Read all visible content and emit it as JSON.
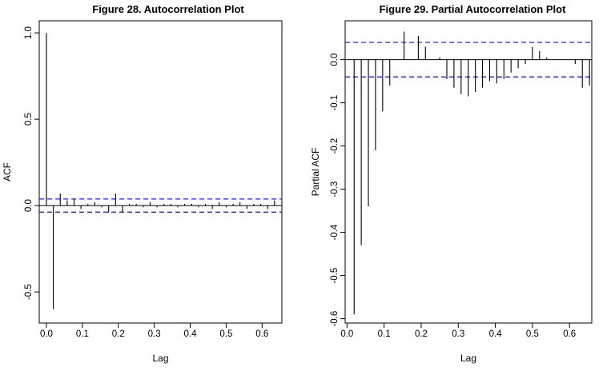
{
  "chart_data": [
    {
      "type": "bar",
      "title": "Figure 28. Autocorrelation Plot",
      "xlabel": "Lag",
      "ylabel": "ACF",
      "xlim": [
        -0.02,
        0.655
      ],
      "ylim": [
        -0.68,
        1.07
      ],
      "xticks": [
        0.0,
        0.1,
        0.2,
        0.3,
        0.4,
        0.5,
        0.6
      ],
      "xtick_labels": [
        "0.0",
        "0.1",
        "0.2",
        "0.3",
        "0.4",
        "0.5",
        "0.6"
      ],
      "yticks": [
        -0.5,
        0.0,
        0.5,
        1.0
      ],
      "ytick_labels": [
        "-0.5",
        "0.0",
        "0.5",
        "1.0"
      ],
      "zero_line": true,
      "confidence_bound": 0.038,
      "confidence_color": "#2020ff",
      "bar_color": "#000000",
      "lag_step": 0.01923,
      "values": [
        1.0,
        -0.6,
        0.07,
        0.03,
        0.04,
        -0.02,
        0.01,
        0.02,
        -0.01,
        -0.04,
        0.07,
        -0.04,
        0.01,
        0.01,
        -0.01,
        0.02,
        -0.01,
        0.01,
        0.01,
        -0.01,
        0.01,
        0.01,
        -0.01,
        0.01,
        -0.02,
        0.02,
        -0.01,
        0.01,
        0.02,
        -0.02,
        0.01,
        0.01,
        -0.02,
        0.03
      ]
    },
    {
      "type": "bar",
      "title": "Figure 29. Partial Autocorrelation Plot",
      "xlabel": "Lag",
      "ylabel": "Partial ACF",
      "xlim": [
        -0.005,
        0.66
      ],
      "ylim": [
        -0.61,
        0.09
      ],
      "xticks": [
        0.0,
        0.1,
        0.2,
        0.3,
        0.4,
        0.5,
        0.6
      ],
      "xtick_labels": [
        "0.0",
        "0.1",
        "0.2",
        "0.3",
        "0.4",
        "0.5",
        "0.6"
      ],
      "yticks": [
        -0.6,
        -0.5,
        -0.4,
        -0.3,
        -0.2,
        -0.1,
        0.0
      ],
      "ytick_labels": [
        "-0.6",
        "-0.5",
        "-0.4",
        "-0.3",
        "-0.2",
        "-0.1",
        "0.0"
      ],
      "zero_line": true,
      "confidence_bound": 0.04,
      "confidence_color": "#2020ff",
      "bar_color": "#000000",
      "lag_start": 0.01923,
      "lag_step": 0.01923,
      "values": [
        -0.59,
        -0.43,
        -0.34,
        -0.21,
        -0.12,
        -0.06,
        0.0,
        0.065,
        0.0,
        0.055,
        0.03,
        0.0,
        0.005,
        -0.045,
        -0.065,
        -0.08,
        -0.085,
        -0.075,
        -0.065,
        -0.05,
        -0.055,
        -0.045,
        -0.03,
        -0.02,
        -0.01,
        0.03,
        0.02,
        0.005,
        0.0,
        0.0,
        0.0,
        -0.01,
        -0.065,
        -0.06
      ]
    }
  ]
}
